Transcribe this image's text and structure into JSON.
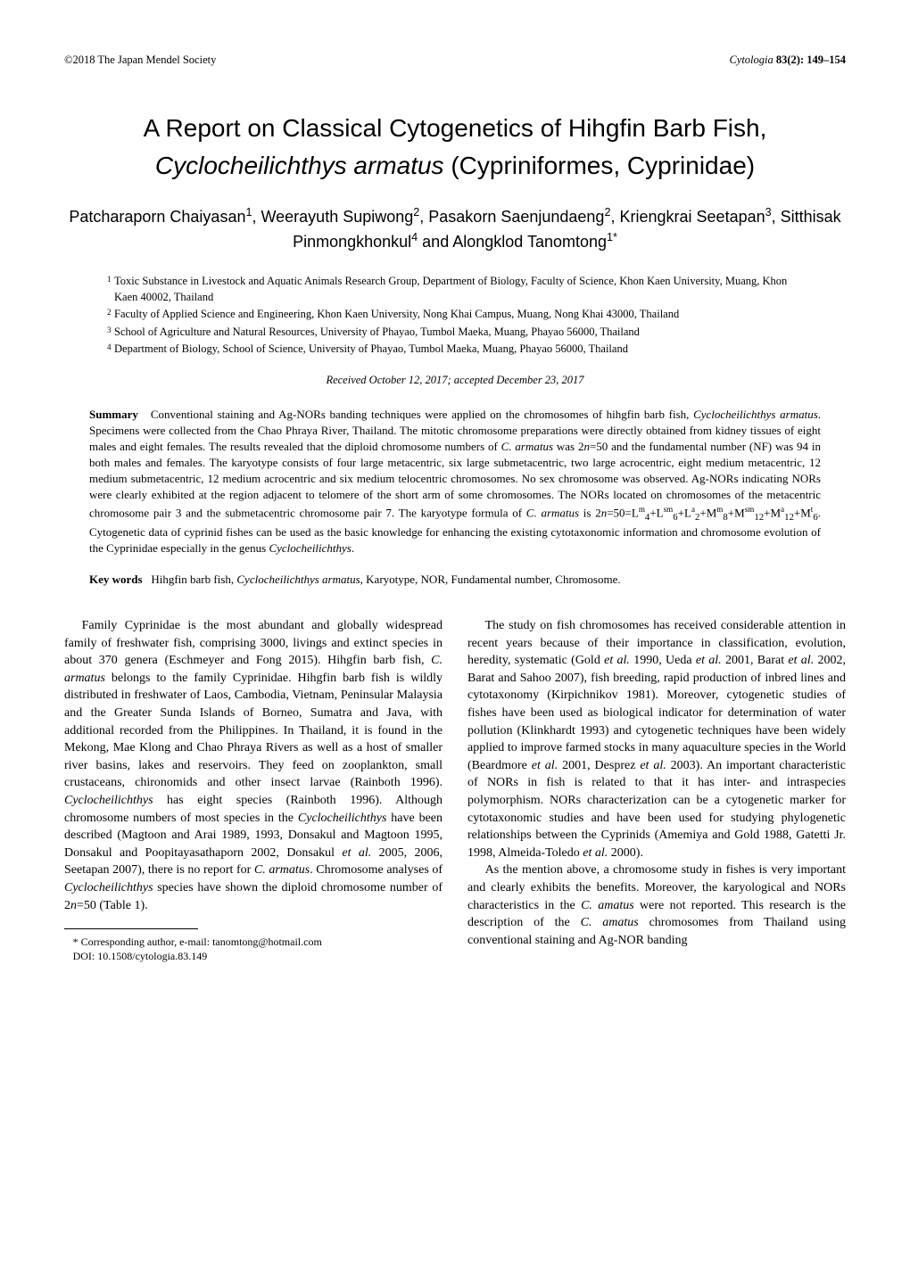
{
  "header": {
    "left": "©2018 The Japan Mendel Society",
    "right_journal": "Cytologia",
    "right_ref": " 83(2): 149–154"
  },
  "title": {
    "line1": "A Report on Classical Cytogenetics of Hihgfin Barb Fish,",
    "line2_italic": "Cyclocheilichthys armatus",
    "line2_rest": " (Cypriniformes, Cyprinidae)"
  },
  "authors": {
    "line1_a": "Patcharaporn Chaiyasan",
    "line1_b": ", Weerayuth Supiwong",
    "line1_c": ", Pasakorn Saenjundaeng",
    "line2_a": "Kriengkrai Seetapan",
    "line2_b": ", Sitthisak Pinmongkhonkul",
    "line2_c": " and Alongklod Tanomtong",
    "sup1": "1",
    "sup2": "2",
    "sup2b": "2",
    "sup3": "3",
    "sup4": "4",
    "sup1star": "1*"
  },
  "affiliations": [
    {
      "num": "1",
      "text": "Toxic Substance in Livestock and Aquatic Animals Research Group, Department of Biology, Faculty of Science, Khon Kaen University, Muang, Khon Kaen 40002, Thailand"
    },
    {
      "num": "2",
      "text": "Faculty of Applied Science and Engineering, Khon Kaen University, Nong Khai Campus, Muang, Nong Khai 43000, Thailand"
    },
    {
      "num": "3",
      "text": "School of Agriculture and Natural Resources, University of Phayao, Tumbol Maeka, Muang, Phayao 56000, Thailand"
    },
    {
      "num": "4",
      "text": "Department of Biology, School of Science, University of Phayao, Tumbol Maeka, Muang, Phayao 56000, Thailand"
    }
  ],
  "received": "Received October 12, 2017; accepted December 23, 2017",
  "summary": {
    "label": "Summary",
    "text_a": "Conventional staining and Ag-NORs banding techniques were applied on the chromosomes of hihgfin barb fish, ",
    "italic1": "Cyclocheilichthys armatus",
    "text_b": ". Specimens were collected from the Chao Phraya River, Thailand. The mitotic chromosome preparations were directly obtained from kidney tissues of eight males and eight females. The results revealed that the diploid chromosome numbers of ",
    "italic2": "C. armatus",
    "text_c": " was 2",
    "ital_n1": "n",
    "text_c2": "=50 and the fundamental number (NF) was 94 in both males and females. The karyotype consists of four large metacentric, six large submetacentric, two large acrocentric, eight medium metacentric, 12 medium submetacentric, 12 medium acrocentric and six medium telocentric chromosomes. No sex chromosome was observed. Ag-NORs indicating NORs were clearly exhibited at the region adjacent to telomere of the short arm of some chromosomes. The NORs located on chromosomes of the metacentric chromosome pair 3 and the submetacentric chromosome pair 7. The karyotype formula of ",
    "italic3": "C. armatus",
    "text_d": " is 2",
    "ital_n2": "n",
    "text_e": "=50=L",
    "f1": "m",
    "f1b": "4",
    "text_f": "+L",
    "f2": "sm",
    "f2b": "6",
    "text_g": "+L",
    "f3": "a",
    "f3b": "2",
    "text_h": "+M",
    "f4": "m",
    "f4b": "8",
    "text_i": "+M",
    "f5": "sm",
    "f5b": "12",
    "text_j": "+M",
    "f6": "a",
    "f6b": "12",
    "text_k": "+M",
    "f7": "t",
    "f7b": "6",
    "text_l": ". Cytogenetic data of cyprinid fishes can be used as the basic knowledge for enhancing the existing cytotaxonomic information and chromosome evolution of the Cyprinidae especially in the genus ",
    "italic4": "Cyclocheilichthys",
    "text_m": "."
  },
  "keywords": {
    "label": "Key words",
    "text_a": "Hihgfin barb fish, ",
    "italic1": "Cyclocheilichthys armatus",
    "text_b": ", Karyotype, NOR, Fundamental number, Chromosome."
  },
  "body": {
    "left": {
      "p1_a": "Family Cyprinidae is the most abundant and globally widespread family of freshwater fish, comprising 3000, livings and extinct species in about 370 genera (Eschmeyer and Fong 2015). Hihgfin barb fish, ",
      "p1_i1": "C. armatus",
      "p1_b": " belongs to the family Cyprinidae. Hihgfin barb fish is wildly distributed in freshwater of Laos, Cambodia, Vietnam, Peninsular Malaysia and the Greater Sunda Islands of Borneo, Sumatra and Java, with additional recorded from the Philippines. In Thailand, it is found in the Mekong, Mae Klong and Chao Phraya Rivers as well as a host of smaller river basins, lakes and reservoirs. They feed on zooplankton, small crustaceans, chironomids and other insect larvae (Rainboth 1996). ",
      "p1_i2": "Cyclocheilichthys",
      "p1_c": " has eight species (Rainboth 1996). Although chromosome numbers of most species in the ",
      "p1_i3": "Cyclocheilichthys",
      "p1_d": " have been described (Magtoon and Arai 1989, 1993, Donsakul and Magtoon 1995, Donsakul and Poopitayasathaporn 2002, Donsakul ",
      "p1_i4": "et al.",
      "p1_e": " 2005, 2006, Seetapan 2007), there is no report for ",
      "p1_i5": "C. armatus",
      "p1_f": ". Chromosome analyses of ",
      "p1_i6": "Cyclocheilichthys",
      "p1_g": " species have shown the diploid chromosome number of 2",
      "p1_i7": "n",
      "p1_h": "=50 (Table 1)."
    },
    "right": {
      "p1_a": "The study on fish chromosomes has received considerable attention in recent years because of their importance in classification, evolution, heredity, systematic (Gold ",
      "p1_i1": "et al.",
      "p1_b": " 1990, Ueda ",
      "p1_i2": "et al.",
      "p1_c": " 2001, Barat ",
      "p1_i3": "et al.",
      "p1_d": " 2002, Barat and Sahoo 2007), fish breeding, rapid production of inbred lines and cytotaxonomy (Kirpichnikov 1981). Moreover, cytogenetic studies of fishes have been used as biological indicator for determination of water pollution (Klinkhardt 1993) and cytogenetic techniques have been widely applied to improve farmed stocks in many aquaculture species in the World (Beardmore ",
      "p1_i4": "et al.",
      "p1_e": " 2001, Desprez ",
      "p1_i5": "et al.",
      "p1_f": " 2003). An important characteristic of NORs in fish is related to that it has inter- and intraspecies polymorphism. NORs characterization can be a cytogenetic marker for cytotaxonomic studies and have been used for studying phylogenetic relationships between the Cyprinids (Amemiya and Gold 1988, Gatetti Jr. 1998, Almeida-Toledo ",
      "p1_i6": "et al.",
      "p1_g": " 2000).",
      "p2_a": "As the mention above, a chromosome study in fishes is very important and clearly exhibits the benefits. Moreover, the karyological and NORs characteristics in the ",
      "p2_i1": "C. amatus",
      "p2_b": " were not reported. This research is the description of the ",
      "p2_i2": "C. amatus",
      "p2_c": " chromosomes from Thailand using conventional staining and Ag-NOR banding"
    }
  },
  "footnote": {
    "line1": "* Corresponding author, e-mail: tanomtong@hotmail.com",
    "line2": "DOI: 10.1508/cytologia.83.149"
  }
}
